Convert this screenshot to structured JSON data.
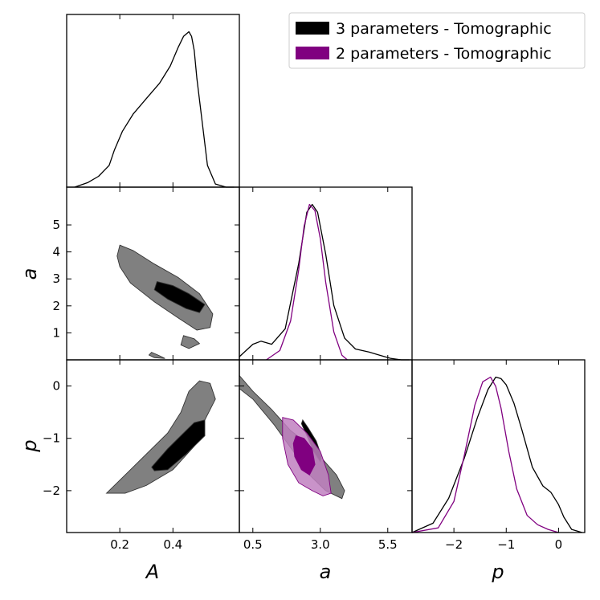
{
  "chart_data": {
    "type": "corner-plot",
    "parameters": [
      "A",
      "a",
      "p"
    ],
    "axis_labels": {
      "A": "A",
      "a": "a",
      "p": "p"
    },
    "ranges": {
      "A": [
        0.0,
        0.65
      ],
      "a": [
        0.0,
        6.4
      ],
      "p": [
        -2.8,
        0.5
      ]
    },
    "ticks": {
      "A": {
        "values": [
          0.2,
          0.4
        ],
        "labels": [
          "0.2",
          "0.4"
        ]
      },
      "a_x": {
        "values": [
          0.5,
          3.0,
          5.5
        ],
        "labels": [
          "0.5",
          "3.0",
          "5.5"
        ]
      },
      "a_y": {
        "values": [
          1,
          2,
          3,
          4,
          5
        ],
        "labels": [
          "1",
          "2",
          "3",
          "4",
          "5"
        ]
      },
      "p_y": {
        "values": [
          0,
          -1,
          -2
        ],
        "labels": [
          "0",
          "−1",
          "−2"
        ]
      },
      "p_x": {
        "values": [
          -2,
          -1,
          0
        ],
        "labels": [
          "−2",
          "−1",
          "0"
        ]
      }
    },
    "legend": {
      "position": "top-right",
      "entries": [
        {
          "label": "3 parameters - Tomographic",
          "color": "#000000"
        },
        {
          "label": "2 parameters - Tomographic",
          "color": "#800080"
        }
      ]
    },
    "series": [
      {
        "name": "3 parameters - Tomographic",
        "line_color": "#000000",
        "fill_outer": "#808080",
        "fill_inner": "#000000",
        "marginals": {
          "A": {
            "x": [
              0.03,
              0.08,
              0.12,
              0.16,
              0.18,
              0.21,
              0.25,
              0.3,
              0.35,
              0.39,
              0.42,
              0.44,
              0.46,
              0.47,
              0.48,
              0.49,
              0.51,
              0.53,
              0.56,
              0.6,
              0.63
            ],
            "density": [
              0.0,
              0.03,
              0.07,
              0.14,
              0.24,
              0.36,
              0.47,
              0.57,
              0.67,
              0.78,
              0.9,
              0.97,
              1.0,
              0.97,
              0.88,
              0.7,
              0.42,
              0.14,
              0.02,
              0.0,
              0.0
            ]
          },
          "a": {
            "x": [
              0.0,
              0.5,
              0.8,
              1.2,
              1.7,
              2.2,
              2.5,
              2.7,
              2.9,
              3.2,
              3.5,
              3.9,
              4.3,
              4.8,
              5.2,
              5.6,
              6.0,
              6.3
            ],
            "density": [
              0.02,
              0.1,
              0.12,
              0.1,
              0.2,
              0.62,
              0.95,
              1.0,
              0.95,
              0.68,
              0.35,
              0.14,
              0.07,
              0.05,
              0.03,
              0.01,
              0.0,
              0.0
            ]
          },
          "p": {
            "x": [
              -2.8,
              -2.4,
              -2.1,
              -1.8,
              -1.55,
              -1.35,
              -1.2,
              -1.1,
              -1.0,
              -0.85,
              -0.7,
              -0.5,
              -0.3,
              -0.15,
              0.0,
              0.1,
              0.25,
              0.45
            ],
            "density": [
              0.0,
              0.06,
              0.22,
              0.48,
              0.74,
              0.92,
              1.0,
              0.99,
              0.95,
              0.83,
              0.66,
              0.42,
              0.3,
              0.26,
              0.18,
              0.1,
              0.02,
              0.0
            ]
          }
        },
        "contours": {
          "A_a": {
            "outer": [
              [
                0.2,
                4.25
              ],
              [
                0.25,
                4.05
              ],
              [
                0.33,
                3.55
              ],
              [
                0.42,
                3.05
              ],
              [
                0.5,
                2.45
              ],
              [
                0.55,
                1.7
              ],
              [
                0.54,
                1.2
              ],
              [
                0.49,
                1.1
              ],
              [
                0.42,
                1.55
              ],
              [
                0.33,
                2.15
              ],
              [
                0.24,
                2.85
              ],
              [
                0.2,
                3.45
              ],
              [
                0.19,
                3.85
              ]
            ],
            "outer_islands": [
              [
                [
                  0.44,
                  0.9
                ],
                [
                  0.48,
                  0.78
                ],
                [
                  0.5,
                  0.6
                ],
                [
                  0.46,
                  0.42
                ],
                [
                  0.43,
                  0.55
                ]
              ],
              [
                [
                  0.32,
                  0.28
                ],
                [
                  0.35,
                  0.15
                ],
                [
                  0.37,
                  0.05
                ],
                [
                  0.33,
                  0.08
                ],
                [
                  0.31,
                  0.18
                ]
              ]
            ],
            "inner": [
              [
                0.34,
                2.9
              ],
              [
                0.4,
                2.75
              ],
              [
                0.46,
                2.45
              ],
              [
                0.52,
                2.05
              ],
              [
                0.5,
                1.75
              ],
              [
                0.45,
                1.9
              ],
              [
                0.38,
                2.25
              ],
              [
                0.33,
                2.6
              ]
            ]
          },
          "A_p": {
            "outer": [
              [
                0.15,
                -2.05
              ],
              [
                0.22,
                -1.7
              ],
              [
                0.3,
                -1.3
              ],
              [
                0.38,
                -0.9
              ],
              [
                0.43,
                -0.5
              ],
              [
                0.46,
                -0.1
              ],
              [
                0.5,
                0.1
              ],
              [
                0.54,
                0.05
              ],
              [
                0.56,
                -0.25
              ],
              [
                0.52,
                -0.65
              ],
              [
                0.48,
                -1.15
              ],
              [
                0.4,
                -1.6
              ],
              [
                0.3,
                -1.9
              ],
              [
                0.22,
                -2.05
              ]
            ],
            "inner": [
              [
                0.32,
                -1.55
              ],
              [
                0.38,
                -1.2
              ],
              [
                0.44,
                -0.9
              ],
              [
                0.48,
                -0.7
              ],
              [
                0.52,
                -0.65
              ],
              [
                0.52,
                -0.95
              ],
              [
                0.45,
                -1.3
              ],
              [
                0.38,
                -1.6
              ],
              [
                0.33,
                -1.62
              ]
            ]
          },
          "a_p": {
            "outer": [
              [
                0.0,
                0.2
              ],
              [
                0.5,
                -0.1
              ],
              [
                1.2,
                -0.45
              ],
              [
                1.9,
                -0.85
              ],
              [
                2.4,
                -1.05
              ],
              [
                3.0,
                -1.35
              ],
              [
                3.6,
                -1.7
              ],
              [
                3.9,
                -2.0
              ],
              [
                3.8,
                -2.15
              ],
              [
                3.2,
                -2.0
              ],
              [
                2.6,
                -1.7
              ],
              [
                2.0,
                -1.25
              ],
              [
                1.3,
                -0.75
              ],
              [
                0.5,
                -0.25
              ],
              [
                0.0,
                -0.05
              ]
            ],
            "inner": [
              [
                2.35,
                -0.65
              ],
              [
                2.55,
                -0.8
              ],
              [
                2.85,
                -1.05
              ],
              [
                3.05,
                -1.35
              ],
              [
                3.0,
                -1.45
              ],
              [
                2.75,
                -1.25
              ],
              [
                2.5,
                -0.95
              ],
              [
                2.3,
                -0.72
              ]
            ]
          }
        }
      },
      {
        "name": "2 parameters - Tomographic",
        "line_color": "#800080",
        "fill_outer": "#c080c0",
        "fill_inner": "#800080",
        "marginals": {
          "a": {
            "x": [
              1.0,
              1.5,
              1.9,
              2.2,
              2.4,
              2.6,
              2.8,
              3.0,
              3.2,
              3.5,
              3.8,
              4.0
            ],
            "density": [
              0.0,
              0.06,
              0.25,
              0.58,
              0.86,
              1.0,
              0.96,
              0.78,
              0.5,
              0.18,
              0.03,
              0.0
            ]
          },
          "p": {
            "x": [
              -2.8,
              -2.3,
              -2.0,
              -1.8,
              -1.6,
              -1.45,
              -1.3,
              -1.2,
              -1.1,
              -0.95,
              -0.8,
              -0.6,
              -0.4,
              -0.2,
              0.0
            ],
            "density": [
              0.0,
              0.03,
              0.2,
              0.5,
              0.82,
              0.97,
              1.0,
              0.94,
              0.8,
              0.52,
              0.28,
              0.11,
              0.05,
              0.02,
              0.0
            ]
          }
        },
        "contours": {
          "a_p": {
            "outer": [
              [
                1.6,
                -0.6
              ],
              [
                2.0,
                -0.65
              ],
              [
                2.5,
                -0.9
              ],
              [
                3.0,
                -1.25
              ],
              [
                3.3,
                -1.7
              ],
              [
                3.4,
                -2.05
              ],
              [
                3.1,
                -2.1
              ],
              [
                2.7,
                -2.0
              ],
              [
                2.2,
                -1.85
              ],
              [
                1.8,
                -1.5
              ],
              [
                1.6,
                -1.0
              ]
            ],
            "inner": [
              [
                2.1,
                -0.95
              ],
              [
                2.4,
                -1.0
              ],
              [
                2.7,
                -1.2
              ],
              [
                2.8,
                -1.5
              ],
              [
                2.6,
                -1.7
              ],
              [
                2.3,
                -1.6
              ],
              [
                2.05,
                -1.35
              ],
              [
                2.0,
                -1.1
              ]
            ]
          }
        }
      }
    ]
  }
}
